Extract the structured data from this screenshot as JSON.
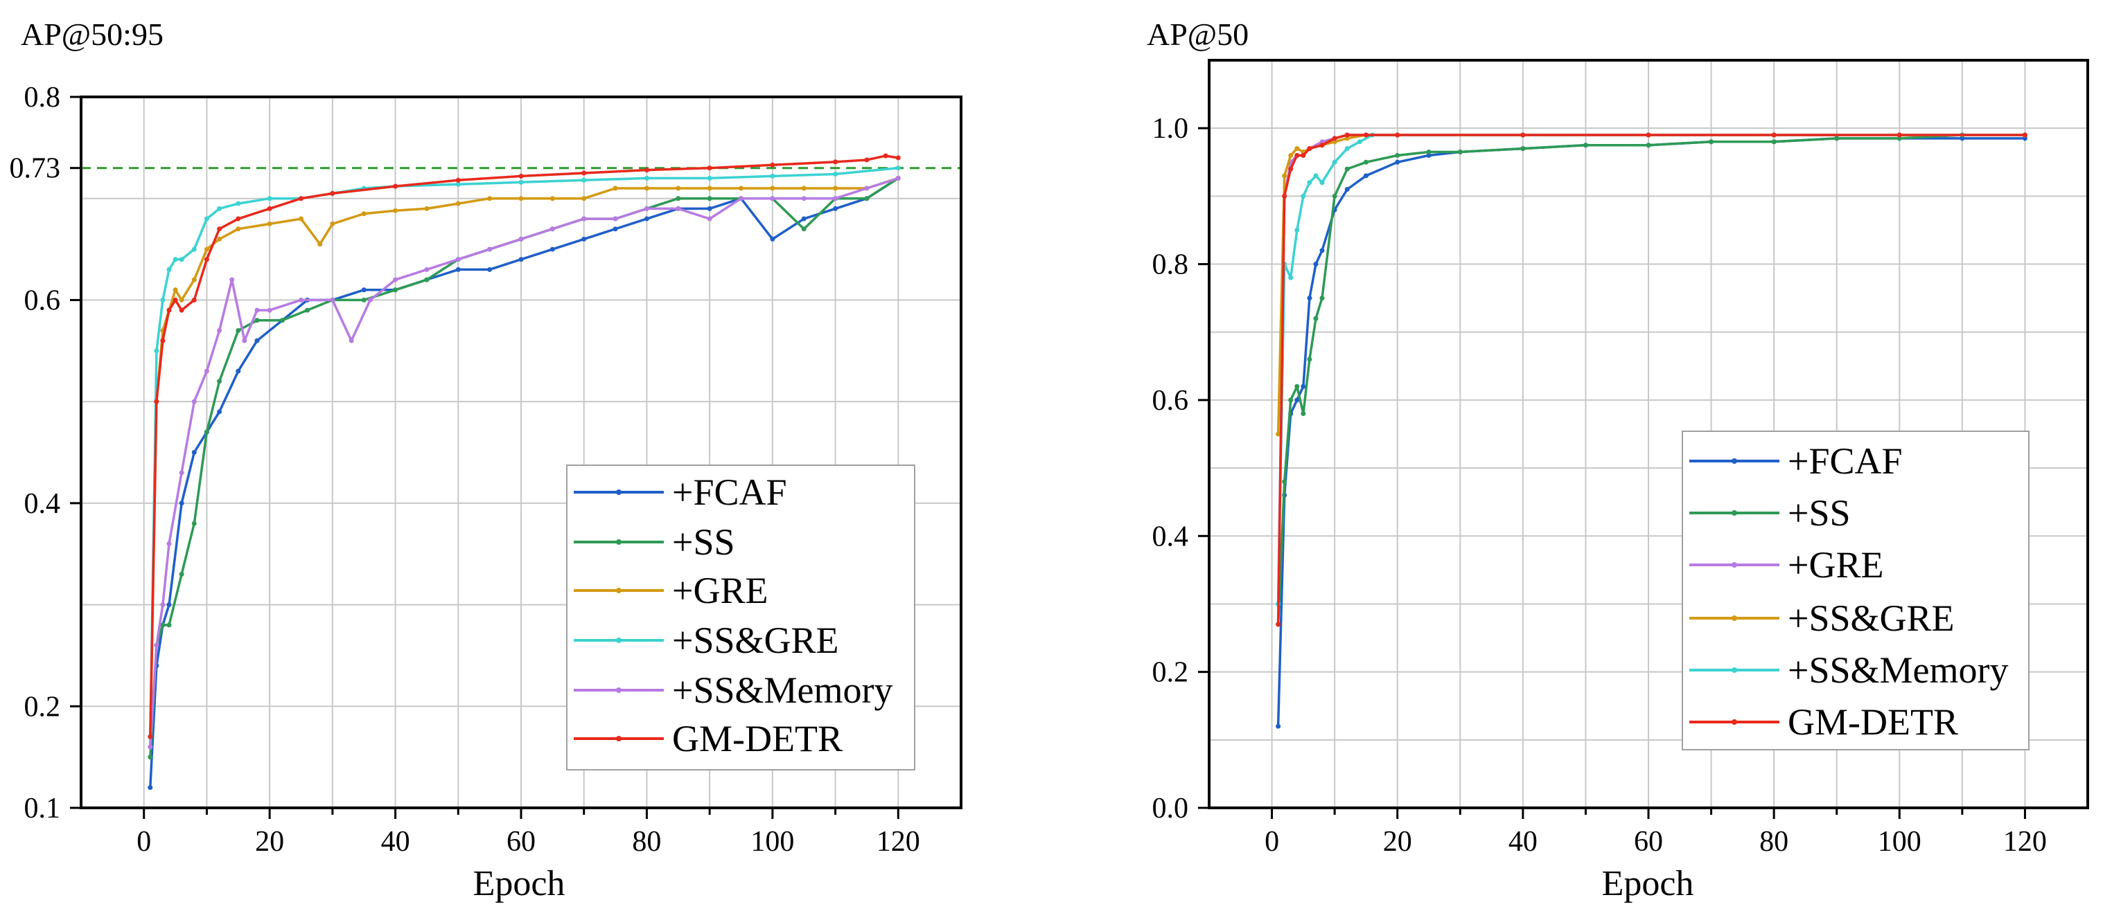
{
  "figure": {
    "colors": {
      "+FCAF": "#1f5fc8",
      "+SS": "#2e9a55",
      "+GRE": "#b77be3",
      "+SS&GRE": "#d39a12",
      "+SS&Memory": "#3cd2d2",
      "GM-DETR": "#e8291c",
      "guide": "#2e9a2e"
    }
  },
  "chart_data": [
    {
      "type": "line",
      "title": "AP@50:95",
      "xlabel": "Epoch",
      "ylabel": "",
      "xlim": [
        -10,
        130
      ],
      "ylim": [
        0.1,
        0.8
      ],
      "xticks": [
        0,
        20,
        40,
        60,
        80,
        100,
        120
      ],
      "xtick_labels": [
        "0",
        "20",
        "40",
        "60",
        "80",
        "100",
        "120"
      ],
      "yticks": [
        0.1,
        0.2,
        0.4,
        0.6,
        0.73,
        0.8
      ],
      "ytick_labels": [
        "0.1",
        "0.2",
        "0.4",
        "0.6",
        "0.73",
        "0.8"
      ],
      "reference_line": {
        "y": 0.73,
        "style": "dashed"
      },
      "legend_position": "bottom-right",
      "series": [
        {
          "name": "+FCAF",
          "color": "#1f5fc8",
          "x": [
            1,
            2,
            3,
            4,
            6,
            8,
            10,
            12,
            15,
            18,
            22,
            26,
            30,
            35,
            40,
            45,
            50,
            55,
            60,
            65,
            70,
            75,
            80,
            85,
            90,
            95,
            100,
            105,
            110,
            115,
            120
          ],
          "values": [
            0.12,
            0.24,
            0.28,
            0.3,
            0.4,
            0.45,
            0.47,
            0.49,
            0.53,
            0.56,
            0.58,
            0.6,
            0.6,
            0.61,
            0.61,
            0.62,
            0.63,
            0.63,
            0.64,
            0.65,
            0.66,
            0.67,
            0.68,
            0.69,
            0.69,
            0.7,
            0.66,
            0.68,
            0.69,
            0.7,
            0.72
          ]
        },
        {
          "name": "+SS",
          "color": "#2e9a55",
          "x": [
            1,
            2,
            3,
            4,
            6,
            8,
            10,
            12,
            15,
            18,
            22,
            26,
            30,
            35,
            40,
            45,
            50,
            55,
            60,
            65,
            70,
            75,
            80,
            85,
            90,
            95,
            100,
            105,
            110,
            115,
            120
          ],
          "values": [
            0.15,
            0.26,
            0.28,
            0.28,
            0.33,
            0.38,
            0.47,
            0.52,
            0.57,
            0.58,
            0.58,
            0.59,
            0.6,
            0.6,
            0.61,
            0.62,
            0.64,
            0.65,
            0.66,
            0.67,
            0.68,
            0.68,
            0.69,
            0.7,
            0.7,
            0.7,
            0.7,
            0.67,
            0.7,
            0.7,
            0.72
          ]
        },
        {
          "name": "+GRE",
          "color": "#d39a12",
          "x": [
            1,
            2,
            3,
            4,
            5,
            6,
            8,
            10,
            12,
            15,
            20,
            25,
            28,
            30,
            35,
            40,
            45,
            50,
            55,
            60,
            65,
            70,
            75,
            80,
            85,
            90,
            95,
            100,
            105,
            110,
            115,
            120
          ],
          "values": [
            0.16,
            0.5,
            0.57,
            0.59,
            0.61,
            0.6,
            0.62,
            0.65,
            0.66,
            0.67,
            0.675,
            0.68,
            0.655,
            0.675,
            0.685,
            0.688,
            0.69,
            0.695,
            0.7,
            0.7,
            0.7,
            0.7,
            0.71,
            0.71,
            0.71,
            0.71,
            0.71,
            0.71,
            0.71,
            0.71,
            0.71,
            0.72
          ]
        },
        {
          "name": "+SS&GRE",
          "color": "#3cd2d2",
          "x": [
            1,
            2,
            3,
            4,
            5,
            6,
            8,
            10,
            12,
            15,
            20,
            25,
            30,
            35,
            40,
            50,
            60,
            70,
            80,
            90,
            100,
            110,
            120
          ],
          "values": [
            0.17,
            0.55,
            0.6,
            0.63,
            0.64,
            0.64,
            0.65,
            0.68,
            0.69,
            0.695,
            0.7,
            0.7,
            0.705,
            0.71,
            0.712,
            0.714,
            0.716,
            0.718,
            0.72,
            0.72,
            0.722,
            0.724,
            0.73
          ]
        },
        {
          "name": "+SS&Memory",
          "color": "#b77be3",
          "x": [
            1,
            2,
            3,
            4,
            6,
            8,
            10,
            12,
            14,
            16,
            18,
            20,
            25,
            30,
            33,
            36,
            40,
            45,
            50,
            55,
            60,
            65,
            70,
            75,
            80,
            85,
            90,
            95,
            100,
            105,
            110,
            115,
            120
          ],
          "values": [
            0.16,
            0.26,
            0.3,
            0.36,
            0.43,
            0.5,
            0.53,
            0.57,
            0.62,
            0.56,
            0.59,
            0.59,
            0.6,
            0.6,
            0.56,
            0.6,
            0.62,
            0.63,
            0.64,
            0.65,
            0.66,
            0.67,
            0.68,
            0.68,
            0.69,
            0.69,
            0.68,
            0.7,
            0.7,
            0.7,
            0.7,
            0.71,
            0.72
          ]
        },
        {
          "name": "GM-DETR",
          "color": "#e8291c",
          "x": [
            1,
            2,
            3,
            4,
            5,
            6,
            8,
            10,
            12,
            15,
            20,
            25,
            30,
            40,
            50,
            60,
            70,
            80,
            90,
            100,
            110,
            115,
            118,
            120
          ],
          "values": [
            0.17,
            0.5,
            0.56,
            0.59,
            0.6,
            0.59,
            0.6,
            0.64,
            0.67,
            0.68,
            0.69,
            0.7,
            0.705,
            0.712,
            0.718,
            0.722,
            0.725,
            0.728,
            0.73,
            0.733,
            0.736,
            0.738,
            0.742,
            0.74
          ]
        }
      ]
    },
    {
      "type": "line",
      "title": "AP@50",
      "xlabel": "Epoch",
      "ylabel": "",
      "xlim": [
        -10,
        130
      ],
      "ylim": [
        0.0,
        1.1
      ],
      "xticks": [
        0,
        20,
        40,
        60,
        80,
        100,
        120
      ],
      "xtick_labels": [
        "0",
        "20",
        "40",
        "60",
        "80",
        "100",
        "120"
      ],
      "yticks": [
        0.0,
        0.2,
        0.4,
        0.6,
        0.8,
        1.0
      ],
      "ytick_labels": [
        "0.0",
        "0.2",
        "0.4",
        "0.6",
        "0.8",
        "1.0"
      ],
      "legend_position": "right",
      "series": [
        {
          "name": "+FCAF",
          "color": "#1f5fc8",
          "x": [
            1,
            2,
            3,
            4,
            5,
            6,
            7,
            8,
            10,
            12,
            15,
            20,
            25,
            30,
            40,
            50,
            60,
            70,
            80,
            90,
            100,
            110,
            120
          ],
          "values": [
            0.12,
            0.46,
            0.58,
            0.6,
            0.62,
            0.75,
            0.8,
            0.82,
            0.88,
            0.91,
            0.93,
            0.95,
            0.96,
            0.965,
            0.97,
            0.975,
            0.975,
            0.98,
            0.98,
            0.985,
            0.985,
            0.985,
            0.985
          ]
        },
        {
          "name": "+SS",
          "color": "#2e9a55",
          "x": [
            1,
            2,
            3,
            4,
            5,
            6,
            7,
            8,
            10,
            12,
            15,
            20,
            25,
            30,
            40,
            50,
            60,
            70,
            80,
            90,
            100,
            110,
            120
          ],
          "values": [
            0.27,
            0.48,
            0.6,
            0.62,
            0.58,
            0.66,
            0.72,
            0.75,
            0.9,
            0.94,
            0.95,
            0.96,
            0.965,
            0.965,
            0.97,
            0.975,
            0.975,
            0.98,
            0.98,
            0.985,
            0.985,
            0.99,
            0.99
          ]
        },
        {
          "name": "+GRE",
          "color": "#b77be3",
          "x": [
            1,
            2,
            3,
            4,
            5,
            6,
            8,
            10,
            12,
            15,
            20,
            40,
            60,
            80,
            100,
            120
          ],
          "values": [
            0.3,
            0.9,
            0.95,
            0.96,
            0.96,
            0.97,
            0.98,
            0.985,
            0.99,
            0.99,
            0.99,
            0.99,
            0.99,
            0.99,
            0.99,
            0.99
          ]
        },
        {
          "name": "+SS&GRE",
          "color": "#d39a12",
          "x": [
            1,
            2,
            3,
            4,
            5,
            6,
            8,
            10,
            12,
            15,
            20,
            40,
            60,
            80,
            100,
            120
          ],
          "values": [
            0.55,
            0.93,
            0.96,
            0.97,
            0.965,
            0.97,
            0.975,
            0.98,
            0.985,
            0.99,
            0.99,
            0.99,
            0.99,
            0.99,
            0.99,
            0.99
          ]
        },
        {
          "name": "+SS&Memory",
          "color": "#3cd2d2",
          "x": [
            1,
            2,
            3,
            4,
            5,
            6,
            7,
            8,
            10,
            12,
            14,
            16,
            20,
            40,
            60,
            80,
            100,
            120
          ],
          "values": [
            0.3,
            0.8,
            0.78,
            0.85,
            0.9,
            0.92,
            0.93,
            0.92,
            0.95,
            0.97,
            0.98,
            0.99,
            0.99,
            0.99,
            0.99,
            0.99,
            0.99,
            0.99
          ]
        },
        {
          "name": "GM-DETR",
          "color": "#e8291c",
          "x": [
            1,
            2,
            3,
            4,
            5,
            6,
            8,
            10,
            12,
            15,
            20,
            40,
            60,
            80,
            100,
            120
          ],
          "values": [
            0.27,
            0.9,
            0.94,
            0.96,
            0.96,
            0.97,
            0.975,
            0.985,
            0.99,
            0.99,
            0.99,
            0.99,
            0.99,
            0.99,
            0.99,
            0.99
          ]
        }
      ]
    }
  ]
}
